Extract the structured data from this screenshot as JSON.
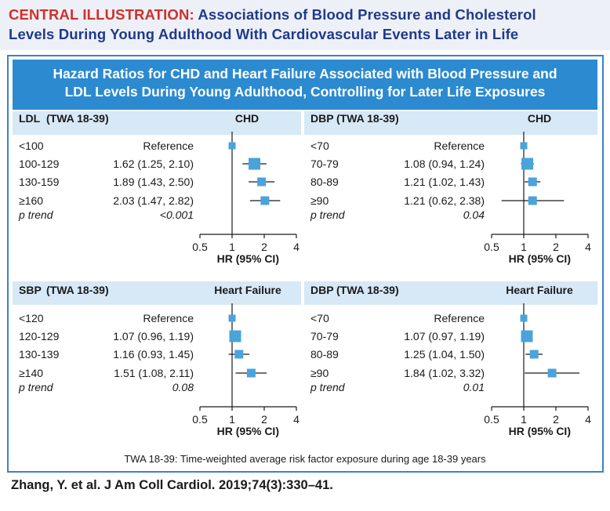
{
  "header": {
    "label": "CENTRAL ILLUSTRATION:",
    "title_line1": "Associations of Blood Pressure and Cholesterol",
    "title_line2": "Levels During Young Adulthood With Cardiovascular Events Later in Life"
  },
  "banner": {
    "line1": "Hazard Ratios for CHD and Heart Failure Associated with Blood Pressure and",
    "line2": "LDL Levels During Young Adulthood, Controlling for Later Life Exposures"
  },
  "axis": {
    "label": "HR (95% CI)",
    "ticks": [
      "0.5",
      "1",
      "2",
      "4"
    ],
    "tick_values": [
      0.5,
      1,
      2,
      4
    ],
    "scale": "log2",
    "reference_line": 1
  },
  "panels": [
    {
      "id": "ldl-chd",
      "exposure": "LDL",
      "twa": "(TWA 18-39)",
      "outcome": "CHD",
      "p_trend_label": "p trend",
      "p_trend_value": "<0.001"
    },
    {
      "id": "dbp-chd",
      "exposure": "DBP",
      "twa": "(TWA 18-39)",
      "outcome": "CHD",
      "p_trend_label": "p trend",
      "p_trend_value": "0.04"
    },
    {
      "id": "sbp-hf",
      "exposure": "SBP",
      "twa": "(TWA 18-39)",
      "outcome": "Heart Failure",
      "p_trend_label": "p trend",
      "p_trend_value": "0.08"
    },
    {
      "id": "dbp-hf",
      "exposure": "DBP",
      "twa": "(TWA 18-39)",
      "outcome": "Heart Failure",
      "p_trend_label": "p trend",
      "p_trend_value": "0.01"
    }
  ],
  "chart_data": [
    {
      "type": "forest",
      "title": "LDL (TWA 18-39) — CHD",
      "xlabel": "HR (95% CI)",
      "xscale": "log",
      "xlim": [
        0.5,
        4
      ],
      "categories": [
        "<100",
        "100-129",
        "130-159",
        "≥160"
      ],
      "labels": [
        "Reference",
        "1.62 (1.25, 2.10)",
        "1.89 (1.43, 2.50)",
        "2.03 (1.47, 2.82)"
      ],
      "hr": [
        1.0,
        1.62,
        1.89,
        2.03
      ],
      "lower": [
        null,
        1.25,
        1.43,
        1.47
      ],
      "upper": [
        null,
        2.1,
        2.5,
        2.82
      ],
      "p_trend": "<0.001"
    },
    {
      "type": "forest",
      "title": "DBP (TWA 18-39) — CHD",
      "xlabel": "HR (95% CI)",
      "xscale": "log",
      "xlim": [
        0.5,
        4
      ],
      "categories": [
        "<70",
        "70-79",
        "80-89",
        "≥90"
      ],
      "labels": [
        "Reference",
        "1.08 (0.94, 1.24)",
        "1.21 (1.02, 1.43)",
        "1.21 (0.62, 2.38)"
      ],
      "hr": [
        1.0,
        1.08,
        1.21,
        1.21
      ],
      "lower": [
        null,
        0.94,
        1.02,
        0.62
      ],
      "upper": [
        null,
        1.24,
        1.43,
        2.38
      ],
      "p_trend": "0.04"
    },
    {
      "type": "forest",
      "title": "SBP (TWA 18-39) — Heart Failure",
      "xlabel": "HR (95% CI)",
      "xscale": "log",
      "xlim": [
        0.5,
        4
      ],
      "categories": [
        "<120",
        "120-129",
        "130-139",
        "≥140"
      ],
      "labels": [
        "Reference",
        "1.07 (0.96, 1.19)",
        "1.16 (0.93, 1.45)",
        "1.51 (1.08, 2.11)"
      ],
      "hr": [
        1.0,
        1.07,
        1.16,
        1.51
      ],
      "lower": [
        null,
        0.96,
        0.93,
        1.08
      ],
      "upper": [
        null,
        1.19,
        1.45,
        2.11
      ],
      "p_trend": "0.08"
    },
    {
      "type": "forest",
      "title": "DBP (TWA 18-39) — Heart Failure",
      "xlabel": "HR (95% CI)",
      "xscale": "log",
      "xlim": [
        0.5,
        4
      ],
      "categories": [
        "<70",
        "70-79",
        "80-89",
        "≥90"
      ],
      "labels": [
        "Reference",
        "1.07 (0.97, 1.19)",
        "1.25 (1.04, 1.50)",
        "1.84 (1.02, 3.32)"
      ],
      "hr": [
        1.0,
        1.07,
        1.25,
        1.84
      ],
      "lower": [
        null,
        0.97,
        1.04,
        1.02
      ],
      "upper": [
        null,
        1.19,
        1.5,
        3.32
      ],
      "p_trend": "0.01"
    }
  ],
  "marker_sizes": [
    "large",
    "large",
    "medium",
    "medium"
  ],
  "colors": {
    "marker": "#4aa3dc",
    "banner": "#2b8ad0",
    "panel_header": "#d7e8f6",
    "header_bg": "#eef0f8",
    "header_title": "#1f3a8a",
    "header_label": "#d0302a"
  },
  "footnote": "TWA 18-39: Time-weighted average risk factor exposure during age 18-39 years",
  "citation": "Zhang, Y. et al. J Am Coll Cardiol. 2019;74(3):330–41."
}
